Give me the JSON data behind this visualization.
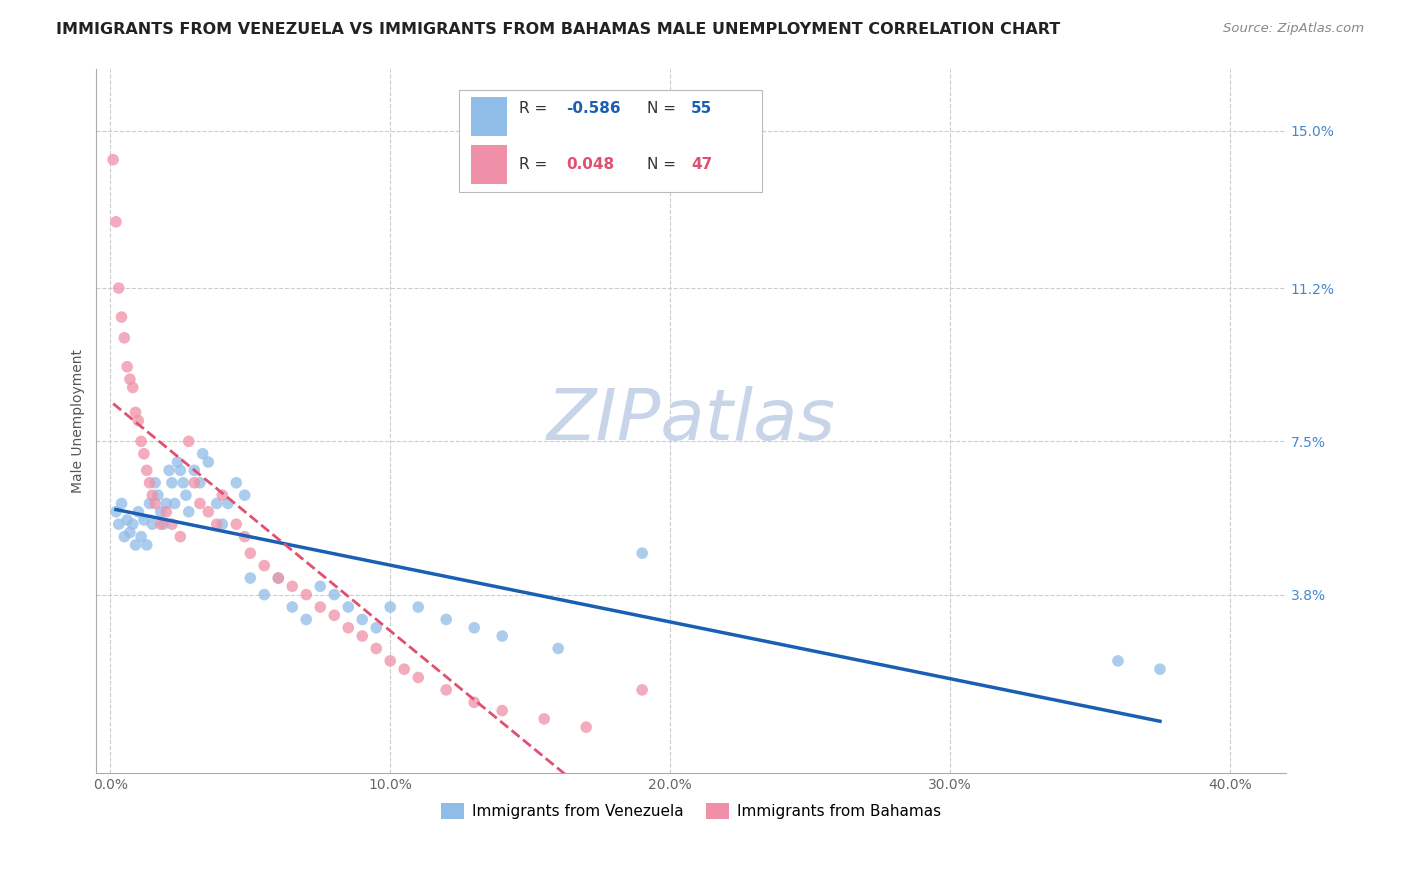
{
  "title": "IMMIGRANTS FROM VENEZUELA VS IMMIGRANTS FROM BAHAMAS MALE UNEMPLOYMENT CORRELATION CHART",
  "source": "Source: ZipAtlas.com",
  "ylabel": "Male Unemployment",
  "x_ticks": [
    "0.0%",
    "10.0%",
    "20.0%",
    "30.0%",
    "40.0%"
  ],
  "x_tick_vals": [
    0.0,
    0.1,
    0.2,
    0.3,
    0.4
  ],
  "y_ticks_right": [
    "15.0%",
    "11.2%",
    "7.5%",
    "3.8%"
  ],
  "y_tick_vals_right": [
    0.15,
    0.112,
    0.075,
    0.038
  ],
  "xlim": [
    -0.005,
    0.42
  ],
  "ylim": [
    -0.005,
    0.165
  ],
  "watermark": "ZIPatlas",
  "blue_scatter_x": [
    0.002,
    0.003,
    0.004,
    0.005,
    0.006,
    0.007,
    0.008,
    0.009,
    0.01,
    0.011,
    0.012,
    0.013,
    0.014,
    0.015,
    0.016,
    0.017,
    0.018,
    0.019,
    0.02,
    0.021,
    0.022,
    0.023,
    0.024,
    0.025,
    0.026,
    0.027,
    0.028,
    0.03,
    0.032,
    0.033,
    0.035,
    0.038,
    0.04,
    0.042,
    0.045,
    0.048,
    0.05,
    0.055,
    0.06,
    0.065,
    0.07,
    0.075,
    0.08,
    0.085,
    0.09,
    0.095,
    0.1,
    0.11,
    0.12,
    0.13,
    0.14,
    0.16,
    0.19,
    0.36,
    0.375
  ],
  "blue_scatter_y": [
    0.058,
    0.055,
    0.06,
    0.052,
    0.056,
    0.053,
    0.055,
    0.05,
    0.058,
    0.052,
    0.056,
    0.05,
    0.06,
    0.055,
    0.065,
    0.062,
    0.058,
    0.055,
    0.06,
    0.068,
    0.065,
    0.06,
    0.07,
    0.068,
    0.065,
    0.062,
    0.058,
    0.068,
    0.065,
    0.072,
    0.07,
    0.06,
    0.055,
    0.06,
    0.065,
    0.062,
    0.042,
    0.038,
    0.042,
    0.035,
    0.032,
    0.04,
    0.038,
    0.035,
    0.032,
    0.03,
    0.035,
    0.035,
    0.032,
    0.03,
    0.028,
    0.025,
    0.048,
    0.022,
    0.02
  ],
  "pink_scatter_x": [
    0.001,
    0.002,
    0.003,
    0.004,
    0.005,
    0.006,
    0.007,
    0.008,
    0.009,
    0.01,
    0.011,
    0.012,
    0.013,
    0.014,
    0.015,
    0.016,
    0.018,
    0.02,
    0.022,
    0.025,
    0.028,
    0.03,
    0.032,
    0.035,
    0.038,
    0.04,
    0.045,
    0.048,
    0.05,
    0.055,
    0.06,
    0.065,
    0.07,
    0.075,
    0.08,
    0.085,
    0.09,
    0.095,
    0.1,
    0.105,
    0.11,
    0.12,
    0.13,
    0.14,
    0.155,
    0.17,
    0.19
  ],
  "pink_scatter_y": [
    0.143,
    0.128,
    0.112,
    0.105,
    0.1,
    0.093,
    0.09,
    0.088,
    0.082,
    0.08,
    0.075,
    0.072,
    0.068,
    0.065,
    0.062,
    0.06,
    0.055,
    0.058,
    0.055,
    0.052,
    0.075,
    0.065,
    0.06,
    0.058,
    0.055,
    0.062,
    0.055,
    0.052,
    0.048,
    0.045,
    0.042,
    0.04,
    0.038,
    0.035,
    0.033,
    0.03,
    0.028,
    0.025,
    0.022,
    0.02,
    0.018,
    0.015,
    0.012,
    0.01,
    0.008,
    0.006,
    0.015
  ],
  "dot_size": 70,
  "dot_alpha": 0.75,
  "blue_color": "#90bce8",
  "pink_color": "#f090a8",
  "blue_line_color": "#1a5fb4",
  "pink_line_color": "#e05070",
  "grid_color": "#cccccc",
  "bg_color": "#ffffff",
  "title_fontsize": 11.5,
  "source_fontsize": 9.5,
  "axis_label_fontsize": 10,
  "tick_fontsize": 10,
  "watermark_fontsize": 52,
  "watermark_color": "#c8d4e8",
  "legend_fontsize": 11
}
